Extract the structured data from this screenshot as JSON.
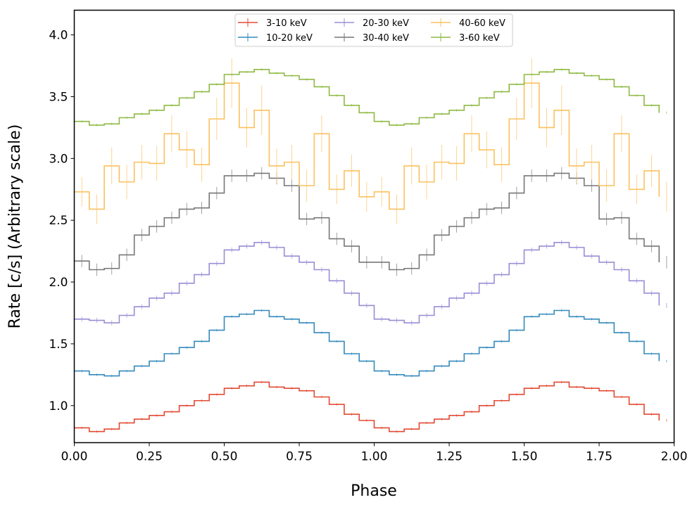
{
  "chart_data": {
    "type": "line",
    "style": "step",
    "xlabel": "Phase",
    "ylabel": "Rate [c/s] (Arbitrary scale)",
    "xlim": [
      0.0,
      2.0
    ],
    "ylim": [
      0.7,
      4.2
    ],
    "xticks": [
      0.0,
      0.25,
      0.5,
      0.75,
      1.0,
      1.25,
      1.5,
      1.75,
      2.0
    ],
    "xtick_labels": [
      "0.00",
      "0.25",
      "0.50",
      "0.75",
      "1.00",
      "1.25",
      "1.50",
      "1.75",
      "2.00"
    ],
    "yticks": [
      1.0,
      1.5,
      2.0,
      2.5,
      3.0,
      3.5,
      4.0
    ],
    "ytick_labels": [
      "1.0",
      "1.5",
      "2.0",
      "2.5",
      "3.0",
      "3.5",
      "4.0"
    ],
    "legend_position": "top-center",
    "bin_width": 0.05,
    "x": [
      0.0,
      0.05,
      0.1,
      0.15,
      0.2,
      0.25,
      0.3,
      0.35,
      0.4,
      0.45,
      0.5,
      0.55,
      0.6,
      0.65,
      0.7,
      0.75,
      0.8,
      0.85,
      0.9,
      0.95,
      1.0,
      1.05,
      1.1,
      1.15,
      1.2,
      1.25,
      1.3,
      1.35,
      1.4,
      1.45,
      1.5,
      1.55,
      1.6,
      1.65,
      1.7,
      1.75,
      1.8,
      1.85,
      1.9,
      1.95
    ],
    "series": [
      {
        "name": "3-10 keV",
        "color": "#e24a33",
        "values": [
          0.82,
          0.79,
          0.81,
          0.86,
          0.89,
          0.92,
          0.95,
          1.0,
          1.04,
          1.09,
          1.14,
          1.16,
          1.19,
          1.15,
          1.14,
          1.12,
          1.07,
          1.01,
          0.93,
          0.88,
          0.82,
          0.79,
          0.81,
          0.86,
          0.89,
          0.92,
          0.95,
          1.0,
          1.04,
          1.09,
          1.14,
          1.16,
          1.19,
          1.15,
          1.14,
          1.12,
          1.07,
          1.01,
          0.93,
          0.88
        ],
        "errors": [
          0.01,
          0.01,
          0.01,
          0.01,
          0.01,
          0.01,
          0.01,
          0.01,
          0.01,
          0.01,
          0.01,
          0.01,
          0.01,
          0.01,
          0.01,
          0.01,
          0.01,
          0.01,
          0.01,
          0.01,
          0.01,
          0.01,
          0.01,
          0.01,
          0.01,
          0.01,
          0.01,
          0.01,
          0.01,
          0.01,
          0.01,
          0.01,
          0.01,
          0.01,
          0.01,
          0.01,
          0.01,
          0.01,
          0.01,
          0.01
        ]
      },
      {
        "name": "10-20 keV",
        "color": "#348abd",
        "values": [
          1.28,
          1.25,
          1.24,
          1.28,
          1.32,
          1.36,
          1.42,
          1.47,
          1.52,
          1.61,
          1.72,
          1.74,
          1.77,
          1.72,
          1.7,
          1.67,
          1.59,
          1.52,
          1.42,
          1.36,
          1.28,
          1.25,
          1.24,
          1.28,
          1.32,
          1.36,
          1.42,
          1.47,
          1.52,
          1.61,
          1.72,
          1.74,
          1.77,
          1.72,
          1.7,
          1.67,
          1.59,
          1.52,
          1.42,
          1.36
        ],
        "errors": [
          0.01,
          0.01,
          0.01,
          0.01,
          0.01,
          0.01,
          0.01,
          0.01,
          0.01,
          0.01,
          0.01,
          0.01,
          0.01,
          0.01,
          0.01,
          0.01,
          0.01,
          0.01,
          0.01,
          0.01,
          0.01,
          0.01,
          0.01,
          0.01,
          0.01,
          0.01,
          0.01,
          0.01,
          0.01,
          0.01,
          0.01,
          0.01,
          0.01,
          0.01,
          0.01,
          0.01,
          0.01,
          0.01,
          0.01,
          0.01
        ]
      },
      {
        "name": "20-30 keV",
        "color": "#988ed5",
        "values": [
          1.7,
          1.69,
          1.67,
          1.73,
          1.8,
          1.87,
          1.91,
          1.99,
          2.06,
          2.15,
          2.26,
          2.29,
          2.32,
          2.28,
          2.21,
          2.16,
          2.1,
          2.01,
          1.91,
          1.81,
          1.7,
          1.69,
          1.67,
          1.73,
          1.8,
          1.87,
          1.91,
          1.99,
          2.06,
          2.15,
          2.26,
          2.29,
          2.32,
          2.28,
          2.21,
          2.16,
          2.1,
          2.01,
          1.91,
          1.81
        ],
        "errors": [
          0.02,
          0.02,
          0.02,
          0.02,
          0.02,
          0.02,
          0.02,
          0.02,
          0.02,
          0.02,
          0.02,
          0.02,
          0.02,
          0.02,
          0.02,
          0.02,
          0.02,
          0.02,
          0.02,
          0.02,
          0.02,
          0.02,
          0.02,
          0.02,
          0.02,
          0.02,
          0.02,
          0.02,
          0.02,
          0.02,
          0.02,
          0.02,
          0.02,
          0.02,
          0.02,
          0.02,
          0.02,
          0.02,
          0.02,
          0.02
        ]
      },
      {
        "name": "30-40 keV",
        "color": "#777777",
        "values": [
          2.17,
          2.1,
          2.11,
          2.22,
          2.38,
          2.45,
          2.52,
          2.59,
          2.6,
          2.72,
          2.86,
          2.86,
          2.88,
          2.84,
          2.78,
          2.51,
          2.52,
          2.35,
          2.29,
          2.16,
          2.16,
          2.1,
          2.11,
          2.22,
          2.38,
          2.45,
          2.52,
          2.59,
          2.6,
          2.72,
          2.86,
          2.86,
          2.88,
          2.84,
          2.78,
          2.51,
          2.52,
          2.35,
          2.29,
          2.16
        ],
        "errors": [
          0.05,
          0.05,
          0.05,
          0.05,
          0.05,
          0.05,
          0.05,
          0.05,
          0.05,
          0.05,
          0.05,
          0.05,
          0.05,
          0.05,
          0.05,
          0.05,
          0.05,
          0.05,
          0.05,
          0.05,
          0.05,
          0.05,
          0.05,
          0.05,
          0.05,
          0.05,
          0.05,
          0.05,
          0.05,
          0.05,
          0.05,
          0.05,
          0.05,
          0.05,
          0.05,
          0.05,
          0.05,
          0.05,
          0.05,
          0.05
        ]
      },
      {
        "name": "40-60 keV",
        "color": "#fbc15e",
        "values": [
          2.73,
          2.59,
          2.94,
          2.81,
          2.97,
          2.96,
          3.2,
          3.07,
          2.95,
          3.32,
          3.61,
          3.25,
          3.39,
          2.94,
          2.97,
          2.78,
          3.2,
          2.75,
          2.9,
          2.69,
          2.73,
          2.59,
          2.94,
          2.81,
          2.97,
          2.96,
          3.2,
          3.07,
          2.95,
          3.32,
          3.61,
          3.25,
          3.39,
          2.94,
          2.97,
          2.78,
          3.2,
          2.75,
          2.9,
          2.69
        ],
        "errors": [
          0.12,
          0.12,
          0.15,
          0.14,
          0.14,
          0.14,
          0.15,
          0.15,
          0.14,
          0.17,
          0.2,
          0.16,
          0.2,
          0.14,
          0.14,
          0.13,
          0.15,
          0.12,
          0.13,
          0.12,
          0.12,
          0.12,
          0.15,
          0.14,
          0.14,
          0.14,
          0.15,
          0.15,
          0.14,
          0.17,
          0.2,
          0.16,
          0.2,
          0.14,
          0.14,
          0.13,
          0.15,
          0.12,
          0.13,
          0.12
        ]
      },
      {
        "name": "3-60 keV",
        "color": "#8eba42",
        "values": [
          3.3,
          3.27,
          3.28,
          3.33,
          3.36,
          3.39,
          3.43,
          3.49,
          3.54,
          3.6,
          3.68,
          3.7,
          3.72,
          3.69,
          3.67,
          3.64,
          3.58,
          3.51,
          3.43,
          3.37,
          3.3,
          3.27,
          3.28,
          3.33,
          3.36,
          3.39,
          3.43,
          3.49,
          3.54,
          3.6,
          3.68,
          3.7,
          3.72,
          3.69,
          3.67,
          3.64,
          3.58,
          3.51,
          3.43,
          3.37
        ],
        "errors": [
          0.01,
          0.01,
          0.01,
          0.01,
          0.01,
          0.01,
          0.01,
          0.01,
          0.01,
          0.01,
          0.01,
          0.01,
          0.01,
          0.01,
          0.01,
          0.01,
          0.01,
          0.01,
          0.01,
          0.01,
          0.01,
          0.01,
          0.01,
          0.01,
          0.01,
          0.01,
          0.01,
          0.01,
          0.01,
          0.01,
          0.01,
          0.01,
          0.01,
          0.01,
          0.01,
          0.01,
          0.01,
          0.01,
          0.01,
          0.01
        ]
      }
    ]
  }
}
